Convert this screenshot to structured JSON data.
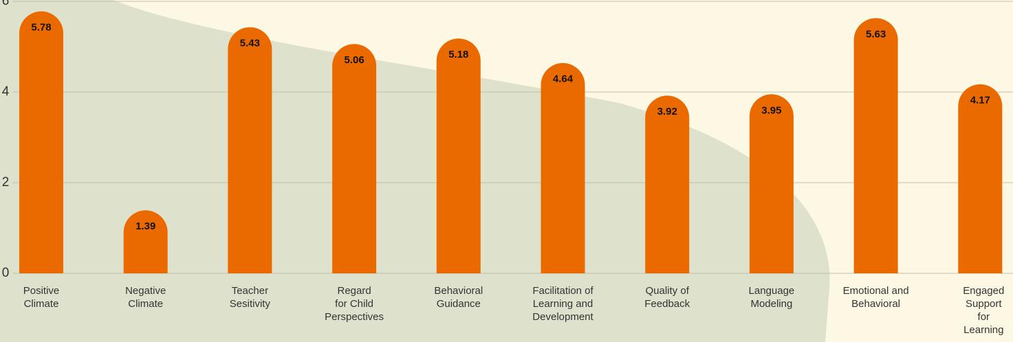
{
  "chart_data": {
    "type": "bar",
    "categories": [
      "Positive\nClimate",
      "Negative\nClimate",
      "Teacher\nSesitivity",
      "Regard\nfor Child\nPerspectives",
      "Behavioral\nGuidance",
      "Facilitation of\nLearning and\nDevelopment",
      "Quality of\nFeedback",
      "Language\nModeling",
      "Emotional  and\nBehavioral",
      "Engaged\nSupport\nfor\nLearning"
    ],
    "values": [
      5.78,
      1.39,
      5.43,
      5.06,
      5.18,
      4.64,
      3.92,
      3.95,
      5.63,
      4.17
    ],
    "color": "#eb6a00",
    "ylim": [
      0,
      6
    ],
    "yticks": [
      0,
      2,
      4,
      6
    ],
    "grid": true
  }
}
